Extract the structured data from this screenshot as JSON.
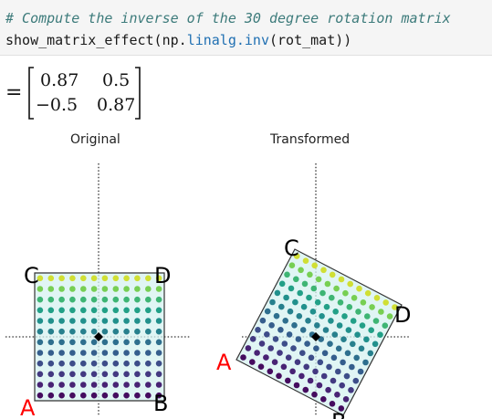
{
  "code": {
    "comment": "# Compute the inverse of the 30 degree rotation matrix",
    "call_prefix": "show_matrix_effect(np.",
    "call_attr": "linalg.inv",
    "call_suffix": "(rot_mat))"
  },
  "output": {
    "equals": "=",
    "matrix": [
      [
        "0.87",
        "0.5"
      ],
      [
        "−0.5",
        "0.87"
      ]
    ],
    "plots": [
      {
        "title": "Original",
        "corner_labels": {
          "A": "A",
          "B": "B",
          "C": "C",
          "D": "D"
        }
      },
      {
        "title": "Transformed",
        "corner_labels": {
          "A": "A",
          "B": "B",
          "C": "C",
          "D": "D"
        }
      }
    ]
  },
  "colors": {
    "comment": "#3d7b7b",
    "attribute": "#1f6fb2",
    "label_A": "#ff0000",
    "fill": "#d6f2f0"
  }
}
